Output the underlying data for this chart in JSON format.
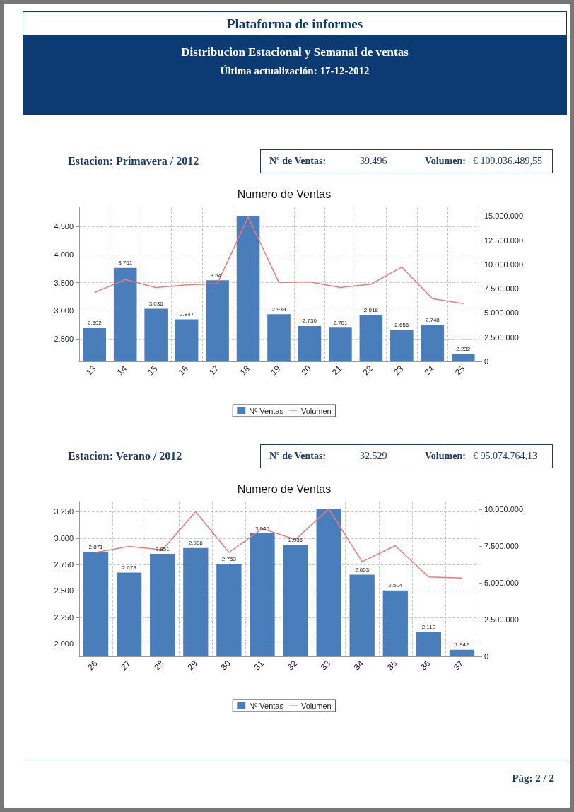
{
  "chart_data": [
    {
      "type": "other",
      "title": "Plataforma de informes",
      "subtitle": "Distribucion Estacional y Semanal de ventas",
      "annotations": [
        "Última actualización:  17-12-2012",
        "Pág: 2 / 2"
      ]
    },
    {
      "type": "bar",
      "title": "Numero de Ventas",
      "subtitle": "Estacion: Primavera / 2012",
      "annotations": [
        "Nº de Ventas:",
        "39.496",
        "Volumen:",
        "€ 109.036.489,55"
      ],
      "categories": [
        "13",
        "14",
        "15",
        "16",
        "17",
        "18",
        "19",
        "20",
        "21",
        "22",
        "23",
        "24",
        "25"
      ],
      "series": [
        {
          "name": "Nº Ventas",
          "color": "#4a7ebb",
          "values": [
            2692,
            3761,
            3036,
            2847,
            3541,
            4690,
            2939,
            2730,
            2701,
            2918,
            2656,
            2748,
            2232
          ],
          "value_labels": [
            "2.692",
            "3.761",
            "3.036",
            "2.847",
            "3.541",
            null,
            "2.939",
            "2.730",
            "2.701",
            "2.918",
            "2.656",
            "2.748",
            "2.232"
          ]
        },
        {
          "name": "Volumen",
          "type": "line",
          "axis": "y2",
          "color": "#f07878",
          "values": [
            7100000,
            8440000,
            7620000,
            7900000,
            8030000,
            14900000,
            8140000,
            8200000,
            7620000,
            7970000,
            9730000,
            6470000,
            5960000
          ]
        }
      ],
      "ylim": [
        2100,
        4840
      ],
      "yticks": [
        {
          "value": 2500,
          "label": "2.500"
        },
        {
          "value": 3000,
          "label": "3.000"
        },
        {
          "value": 3500,
          "label": "3.500"
        },
        {
          "value": 4000,
          "label": "4.000"
        },
        {
          "value": 4500,
          "label": "4.500"
        }
      ],
      "y2lim": [
        0,
        15900000
      ],
      "y2ticks": [
        0,
        {
          "value": 2500000,
          "label": "2.500.000"
        },
        {
          "value": 5000000,
          "label": "5.000.000"
        },
        {
          "value": 7500000,
          "label": "7.500.000"
        },
        {
          "value": 10000000,
          "label": "10.000.000"
        },
        {
          "value": 12500000,
          "label": "12.500.000"
        },
        {
          "value": 15000000,
          "label": "15.000.000"
        }
      ],
      "grid": true,
      "legend": "bottom"
    },
    {
      "type": "bar",
      "title": "Numero de Ventas",
      "subtitle": "Estacion: Verano / 2012",
      "annotations": [
        "Nº de Ventas:",
        "32.529",
        "Volumen:",
        "€ 95.074.764,13"
      ],
      "categories": [
        "26",
        "27",
        "28",
        "29",
        "30",
        "31",
        "32",
        "33",
        "34",
        "35",
        "36",
        "37"
      ],
      "series": [
        {
          "name": "Nº Ventas",
          "color": "#4a7ebb",
          "values": [
            2871,
            2673,
            2851,
            2906,
            2753,
            3045,
            2935,
            3280,
            2653,
            2504,
            2113,
            1942
          ],
          "value_labels": [
            "2.871",
            "2.673",
            "2.851",
            "2.906",
            "2.753",
            "3.045",
            "2.935",
            null,
            "2.653",
            "2.504",
            "2.113",
            "1.942"
          ]
        },
        {
          "name": "Volumen",
          "type": "line",
          "axis": "y2",
          "color": "#f07878",
          "values": [
            7080000,
            7490000,
            7260000,
            9860000,
            7080000,
            8700000,
            7960000,
            10050000,
            6450000,
            7540000,
            5410000,
            5340000
          ]
        }
      ],
      "ylim": [
        1880,
        3340
      ],
      "yticks": [
        {
          "value": 2000,
          "label": "2.000"
        },
        {
          "value": 2250,
          "label": "2.250"
        },
        {
          "value": 2500,
          "label": "2.500"
        },
        {
          "value": 2750,
          "label": "2.750"
        },
        {
          "value": 3000,
          "label": "3.000"
        },
        {
          "value": 3250,
          "label": "3.250"
        }
      ],
      "y2lim": [
        0,
        10500000
      ],
      "y2ticks": [
        0,
        {
          "value": 2500000,
          "label": "2.500.000"
        },
        {
          "value": 5000000,
          "label": "5.000.000"
        },
        {
          "value": 7500000,
          "label": "7.500.000"
        },
        {
          "value": 10000000,
          "label": "10.000.000"
        }
      ],
      "grid": true,
      "legend": "bottom"
    }
  ]
}
